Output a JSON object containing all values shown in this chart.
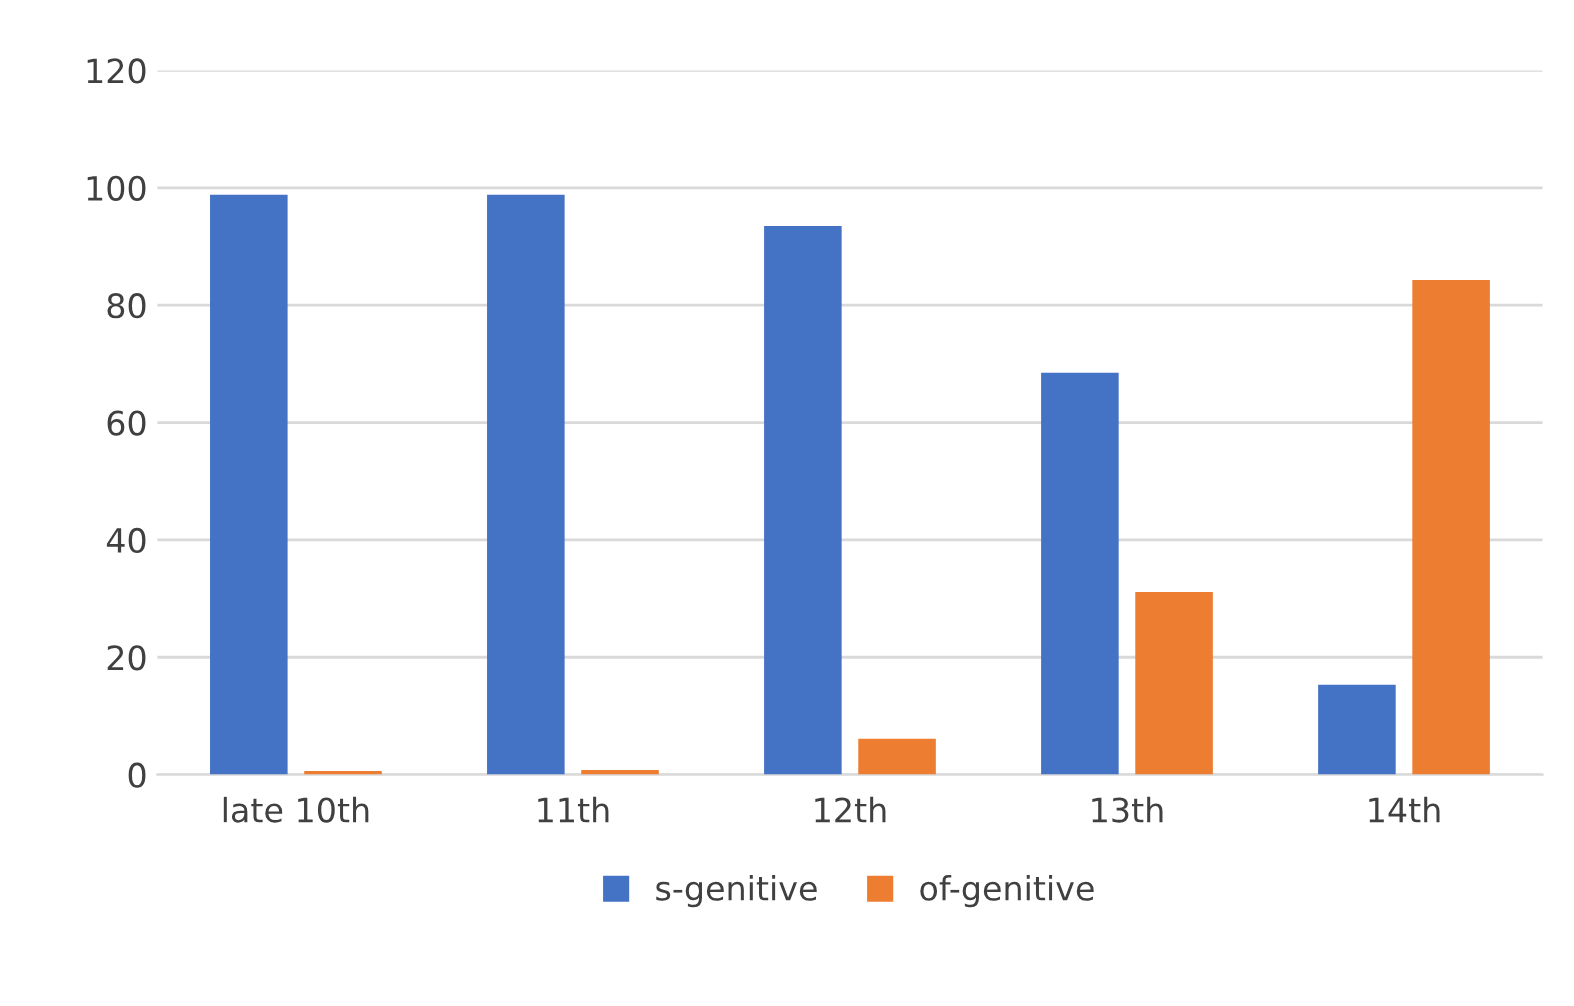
{
  "chart_data": {
    "type": "bar",
    "categories": [
      "late 10th",
      "11th",
      "12th",
      "13th",
      "14th"
    ],
    "series": [
      {
        "name": "s-genitive",
        "color": "#4472c4",
        "values": [
          98.8,
          98.8,
          93.5,
          68.5,
          15.3
        ]
      },
      {
        "name": "of-genitive",
        "color": "#ed7d31",
        "values": [
          0.6,
          0.8,
          6.1,
          31.1,
          84.3
        ]
      }
    ],
    "ylim": [
      0,
      120
    ],
    "yticks": [
      0,
      20,
      40,
      60,
      80,
      100,
      120
    ],
    "grid": "y",
    "legend": "bottom"
  }
}
